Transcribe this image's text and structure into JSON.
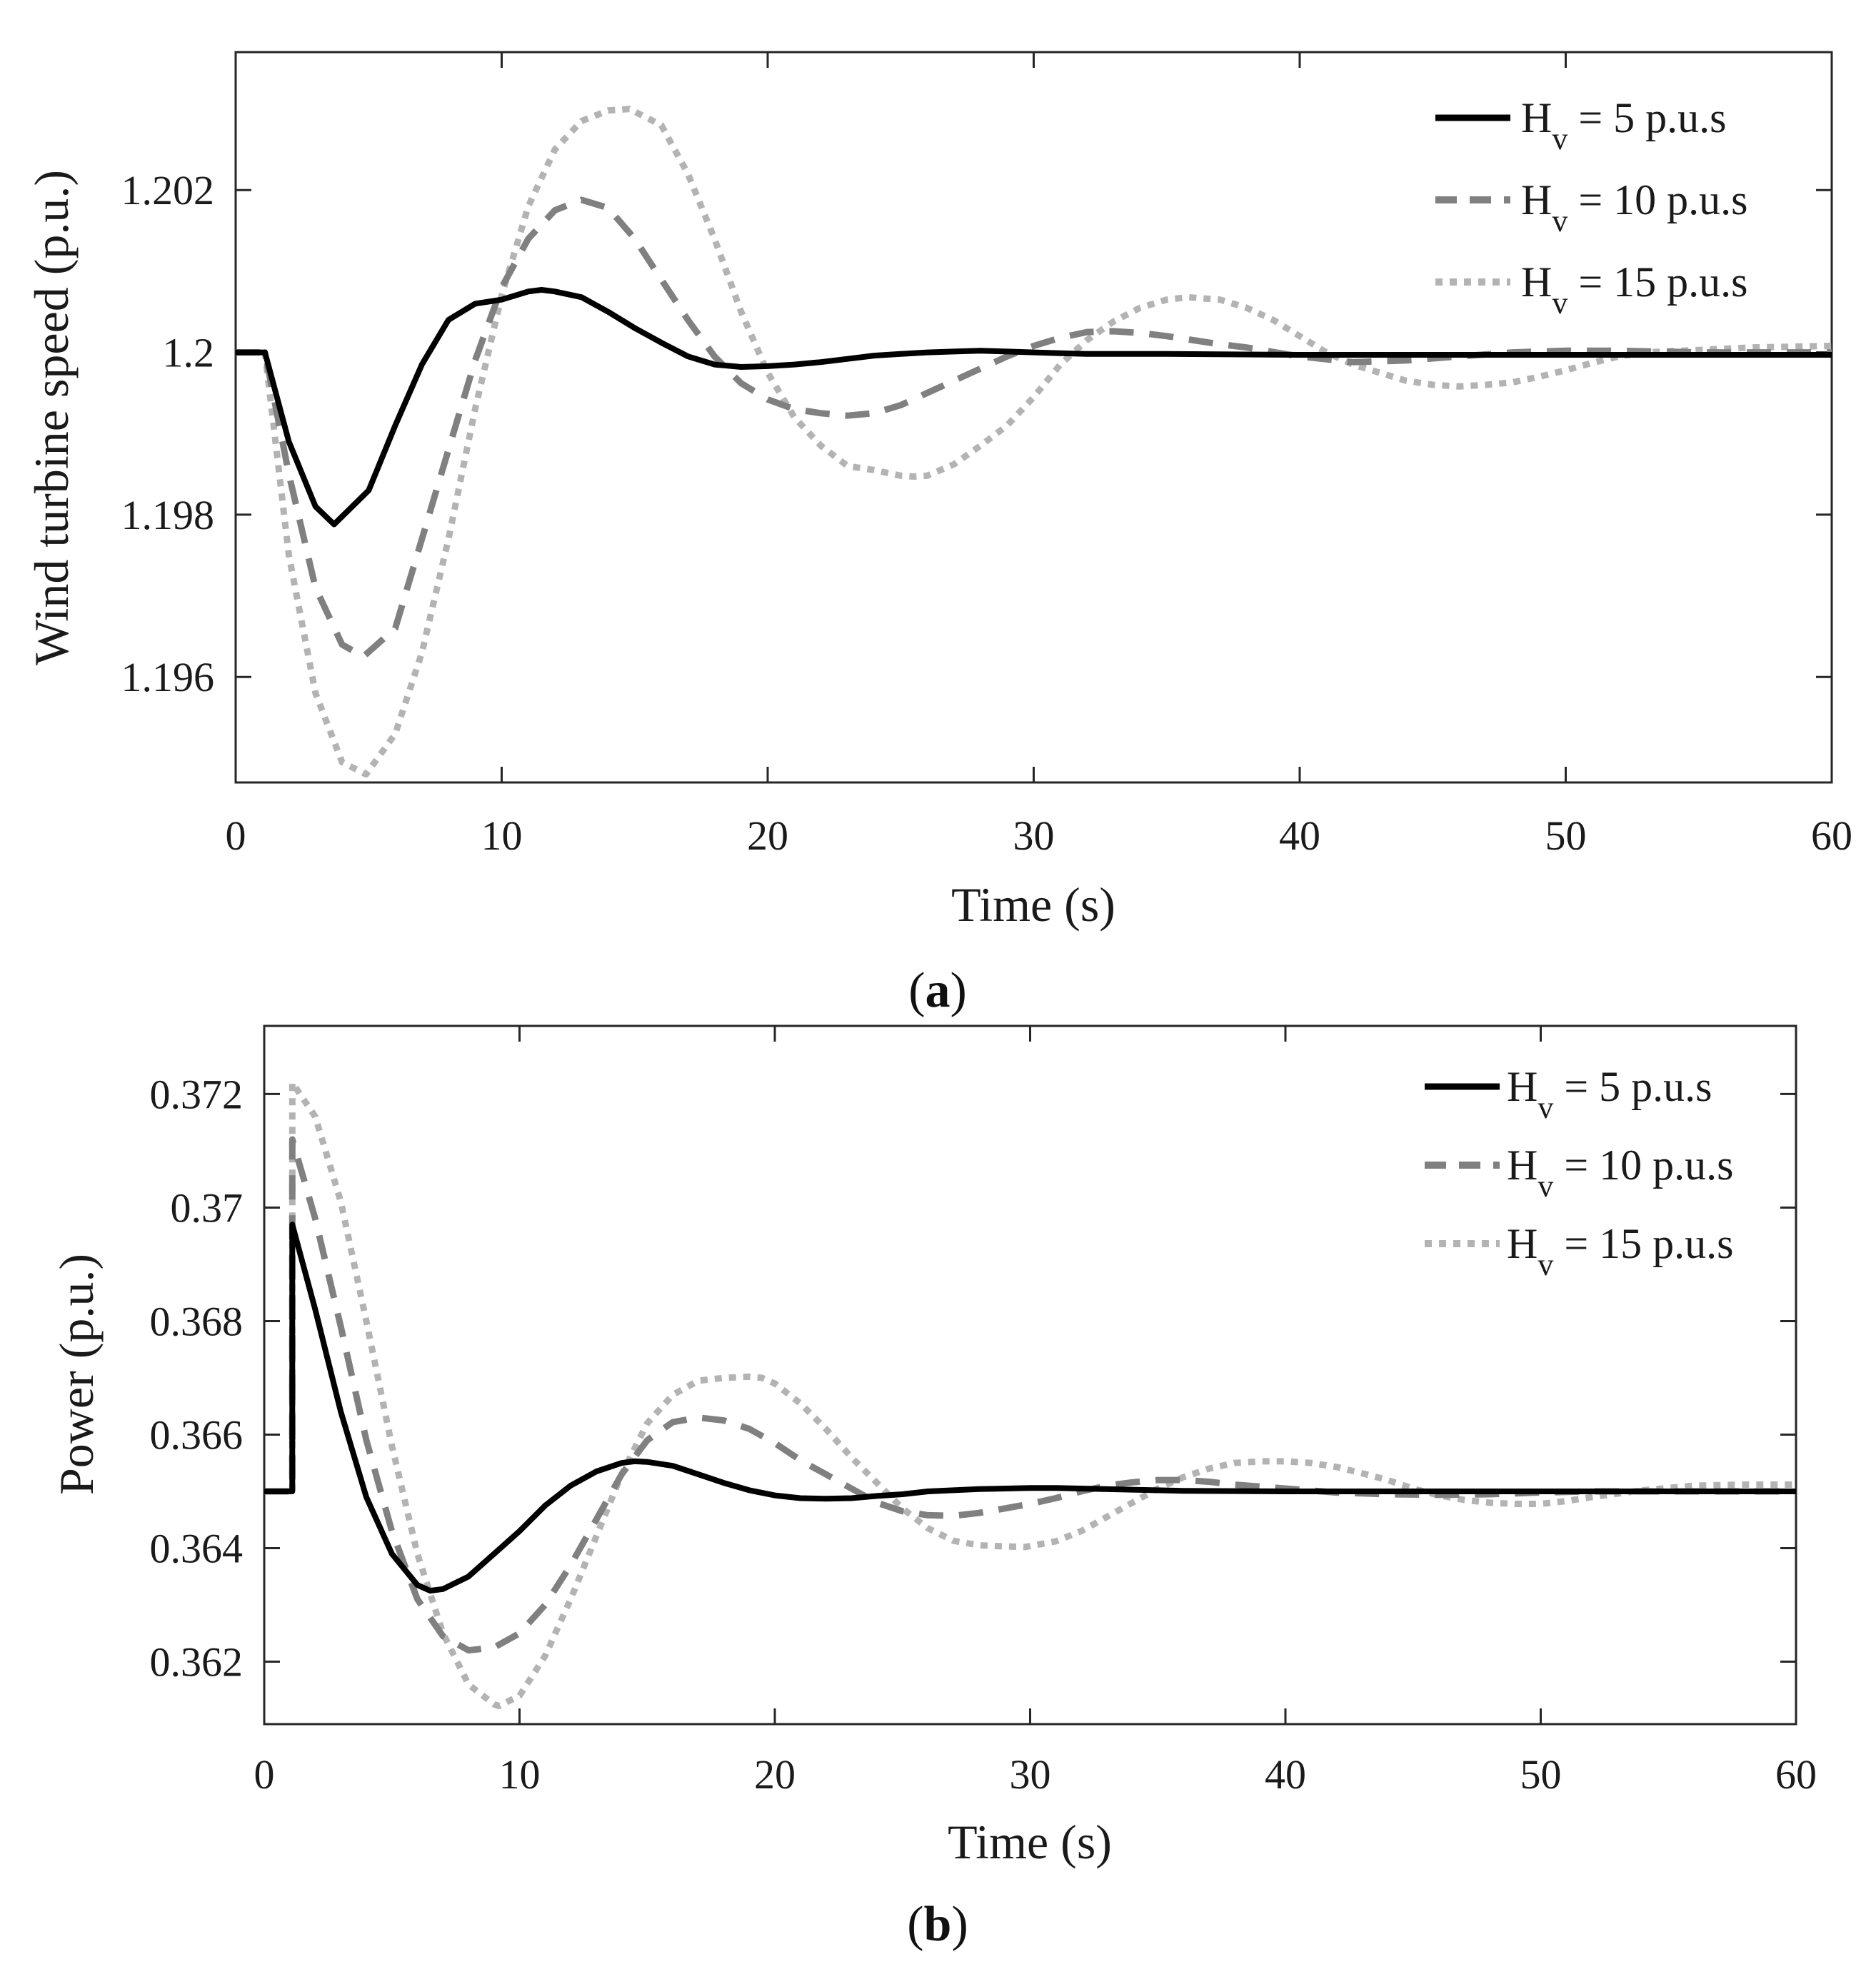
{
  "figure": {
    "panel_captions": [
      {
        "open": "(",
        "letter": "a",
        "close": ")"
      },
      {
        "open": "(",
        "letter": "b",
        "close": ")"
      }
    ]
  },
  "chart_data": [
    {
      "type": "line",
      "panel": "a",
      "xlabel": "Time (s)",
      "ylabel": "Wind turbine speed (p.u.)",
      "xlim": [
        0,
        60
      ],
      "ylim": [
        1.1947,
        1.2037
      ],
      "xticks": [
        0,
        10,
        20,
        30,
        40,
        50,
        60
      ],
      "xtick_labels": [
        "0",
        "10",
        "20",
        "30",
        "40",
        "50",
        "60"
      ],
      "yticks": [
        1.196,
        1.198,
        1.2,
        1.202
      ],
      "ytick_labels": [
        "1.196",
        "1.198",
        "1.2",
        "1.202"
      ],
      "legend_position": "top-right",
      "legend": [
        {
          "main": "H",
          "sub": "v",
          "rest": " = 5 p.u.s"
        },
        {
          "main": "H",
          "sub": "v",
          "rest": " = 10 p.u.s"
        },
        {
          "main": "H",
          "sub": "v",
          "rest": " = 15 p.u.s"
        }
      ],
      "series": [
        {
          "name": "Hv = 5 p.u.s",
          "color": "#000000",
          "dash": "solid",
          "x": [
            0,
            1.1,
            2,
            3,
            3.7,
            5,
            6,
            7,
            8,
            9,
            10,
            11,
            11.5,
            12,
            13,
            14,
            15,
            16,
            17,
            18,
            19,
            20,
            21,
            22,
            23,
            24,
            25,
            26,
            27,
            28,
            29,
            30,
            31,
            32,
            33,
            34,
            35,
            40,
            45,
            50,
            55,
            60
          ],
          "y": [
            1.2,
            1.2,
            1.1989,
            1.1981,
            1.19788,
            1.1983,
            1.1991,
            1.19985,
            1.2004,
            1.2006,
            1.20065,
            1.20075,
            1.20077,
            1.20075,
            1.20068,
            1.2005,
            1.2003,
            1.20012,
            1.19995,
            1.19985,
            1.19982,
            1.19983,
            1.19985,
            1.19988,
            1.19992,
            1.19996,
            1.19998,
            1.2,
            1.20001,
            1.20002,
            1.20001,
            1.2,
            1.19999,
            1.19998,
            1.19998,
            1.19998,
            1.19998,
            1.19997,
            1.19997,
            1.19997,
            1.19997,
            1.19997
          ]
        },
        {
          "name": "Hv = 10 p.u.s",
          "color": "#808080",
          "dash": "dashed",
          "x": [
            0,
            1.1,
            2,
            3,
            4,
            4.8,
            6,
            7,
            8,
            9,
            10,
            11,
            12,
            13,
            14,
            15,
            16,
            17,
            18,
            19,
            20,
            21,
            22,
            23,
            24,
            25,
            26,
            27,
            28,
            29,
            30,
            31,
            32,
            33,
            34,
            35,
            36,
            37,
            38,
            40,
            42,
            44,
            46,
            48,
            50,
            52,
            55,
            60
          ],
          "y": [
            1.2,
            1.2,
            1.1985,
            1.1971,
            1.1964,
            1.19625,
            1.1966,
            1.1977,
            1.1988,
            1.1999,
            1.2008,
            1.2014,
            1.20175,
            1.20188,
            1.20178,
            1.2014,
            1.2009,
            1.2004,
            1.19995,
            1.19962,
            1.19942,
            1.1993,
            1.19925,
            1.19922,
            1.19925,
            1.19935,
            1.1995,
            1.19965,
            1.1998,
            1.19995,
            1.20008,
            1.20018,
            1.20025,
            1.20026,
            1.20024,
            1.2002,
            1.20015,
            1.2001,
            1.20006,
            1.19995,
            1.19988,
            1.1999,
            1.19995,
            1.2,
            1.20002,
            1.20002,
            1.2,
            1.2
          ]
        },
        {
          "name": "Hv = 15 p.u.s",
          "color": "#b3b3b3",
          "dash": "dotted",
          "x": [
            0,
            1.1,
            2,
            3,
            4,
            4.9,
            6,
            7,
            8,
            9,
            10,
            11,
            12,
            13,
            14,
            14.8,
            16,
            17,
            18,
            19,
            20,
            21,
            22,
            23,
            24,
            25,
            25.5,
            26,
            27,
            28,
            29,
            30,
            31,
            32,
            33,
            34,
            35,
            35.8,
            37,
            38,
            39,
            40,
            41,
            42,
            43,
            44,
            45,
            46,
            47,
            48,
            49,
            50,
            51,
            52,
            53,
            55,
            57,
            60
          ],
          "y": [
            1.2,
            1.2,
            1.1975,
            1.1958,
            1.19495,
            1.1948,
            1.1953,
            1.1963,
            1.1977,
            1.1993,
            1.2007,
            1.2018,
            1.2025,
            1.20285,
            1.20298,
            1.203,
            1.2028,
            1.2022,
            1.2014,
            1.2005,
            1.19975,
            1.1992,
            1.19885,
            1.1986,
            1.19855,
            1.19848,
            1.19847,
            1.19848,
            1.19862,
            1.19885,
            1.1991,
            1.19945,
            1.19985,
            1.20015,
            1.20038,
            1.20055,
            1.20065,
            1.20068,
            1.20065,
            1.20055,
            1.2004,
            1.2002,
            1.2,
            1.19985,
            1.19975,
            1.19965,
            1.1996,
            1.19958,
            1.1996,
            1.19963,
            1.1997,
            1.19978,
            1.19987,
            1.19995,
            1.2,
            1.20003,
            1.20006,
            1.20008
          ]
        }
      ]
    },
    {
      "type": "line",
      "panel": "b",
      "xlabel": "Time (s)",
      "ylabel": "Power (p.u.)",
      "xlim": [
        0,
        60
      ],
      "ylim": [
        0.3609,
        0.3732
      ],
      "xticks": [
        0,
        10,
        20,
        30,
        40,
        50,
        60
      ],
      "xtick_labels": [
        "0",
        "10",
        "20",
        "30",
        "40",
        "50",
        "60"
      ],
      "yticks": [
        0.362,
        0.364,
        0.366,
        0.368,
        0.37,
        0.372
      ],
      "ytick_labels": [
        "0.362",
        "0.364",
        "0.366",
        "0.368",
        "0.37",
        "0.372"
      ],
      "legend_position": "top-right",
      "legend": [
        {
          "main": "H",
          "sub": "v",
          "rest": " = 5 p.u.s"
        },
        {
          "main": "H",
          "sub": "v",
          "rest": " = 10 p.u.s"
        },
        {
          "main": "H",
          "sub": "v",
          "rest": " = 15 p.u.s"
        }
      ],
      "series": [
        {
          "name": "Hv = 5 p.u.s",
          "color": "#000000",
          "dash": "solid",
          "x": [
            0,
            1.1,
            1.1,
            2,
            3,
            4,
            5,
            6,
            6.5,
            7,
            8,
            9,
            10,
            11,
            12,
            13,
            14,
            14.5,
            15,
            16,
            17,
            18,
            19,
            20,
            21,
            22,
            23,
            24,
            25,
            26,
            28,
            30,
            31,
            32,
            34,
            36,
            40,
            45,
            50,
            55,
            60
          ],
          "y": [
            0.365,
            0.365,
            0.3697,
            0.3682,
            0.3664,
            0.3649,
            0.3639,
            0.36335,
            0.36325,
            0.36328,
            0.3635,
            0.3639,
            0.3643,
            0.36475,
            0.3651,
            0.36535,
            0.3655,
            0.36553,
            0.36552,
            0.36545,
            0.3653,
            0.36515,
            0.36502,
            0.36493,
            0.36488,
            0.36487,
            0.36488,
            0.36492,
            0.36495,
            0.365,
            0.36504,
            0.36506,
            0.36506,
            0.36505,
            0.36503,
            0.36501,
            0.365,
            0.365,
            0.365,
            0.365,
            0.365
          ]
        },
        {
          "name": "Hv = 10 p.u.s",
          "color": "#808080",
          "dash": "dashed",
          "x": [
            0,
            1.1,
            1.1,
            2,
            3,
            4,
            5,
            6,
            7,
            8,
            9,
            10,
            11,
            12,
            13,
            14,
            15,
            16,
            17,
            18,
            19,
            20,
            21,
            22,
            23,
            24,
            25,
            26,
            27,
            28,
            29,
            30,
            31,
            32,
            33,
            34,
            35,
            36,
            37,
            38,
            40,
            42,
            44,
            46,
            48,
            50,
            52,
            55,
            60
          ],
          "y": [
            0.365,
            0.365,
            0.3712,
            0.3698,
            0.3679,
            0.3659,
            0.3643,
            0.3631,
            0.36245,
            0.3622,
            0.36225,
            0.3625,
            0.363,
            0.3637,
            0.3645,
            0.3653,
            0.3659,
            0.36622,
            0.3663,
            0.36625,
            0.3661,
            0.36585,
            0.36555,
            0.3653,
            0.36505,
            0.3648,
            0.36465,
            0.36458,
            0.36457,
            0.36462,
            0.3647,
            0.36478,
            0.36488,
            0.365,
            0.3651,
            0.36516,
            0.3652,
            0.3652,
            0.36517,
            0.36512,
            0.36505,
            0.36498,
            0.36495,
            0.36494,
            0.36495,
            0.36498,
            0.365,
            0.365,
            0.365
          ]
        },
        {
          "name": "Hv = 15 p.u.s",
          "color": "#b3b3b3",
          "dash": "dotted",
          "x": [
            0,
            1.1,
            1.1,
            2,
            3,
            4,
            5,
            6,
            7,
            8,
            9,
            9.2,
            10,
            11,
            12,
            13,
            14,
            15,
            16,
            17,
            18,
            19,
            19.5,
            20,
            21,
            22,
            23,
            24,
            25,
            26,
            27,
            28,
            29,
            29.8,
            31,
            32,
            33,
            34,
            35,
            36,
            37,
            38,
            39,
            40,
            41,
            42,
            43,
            44,
            45,
            46,
            47,
            48,
            49,
            50,
            51,
            52,
            54,
            56,
            58,
            60
          ],
          "y": [
            0.365,
            0.365,
            0.3722,
            0.3716,
            0.3701,
            0.368,
            0.3658,
            0.3639,
            0.3625,
            0.3616,
            0.36125,
            0.36122,
            0.3614,
            0.3621,
            0.3631,
            0.3642,
            0.3653,
            0.3662,
            0.3667,
            0.36695,
            0.367,
            0.36702,
            0.367,
            0.3669,
            0.36655,
            0.3661,
            0.3656,
            0.36515,
            0.3647,
            0.36435,
            0.36413,
            0.36405,
            0.36403,
            0.36402,
            0.36412,
            0.3643,
            0.36455,
            0.3648,
            0.36505,
            0.36525,
            0.3654,
            0.3655,
            0.36553,
            0.36553,
            0.3655,
            0.36543,
            0.36532,
            0.3652,
            0.36505,
            0.36493,
            0.36485,
            0.3648,
            0.36478,
            0.36478,
            0.36483,
            0.3649,
            0.36502,
            0.3651,
            0.36512,
            0.36512
          ]
        }
      ]
    }
  ]
}
